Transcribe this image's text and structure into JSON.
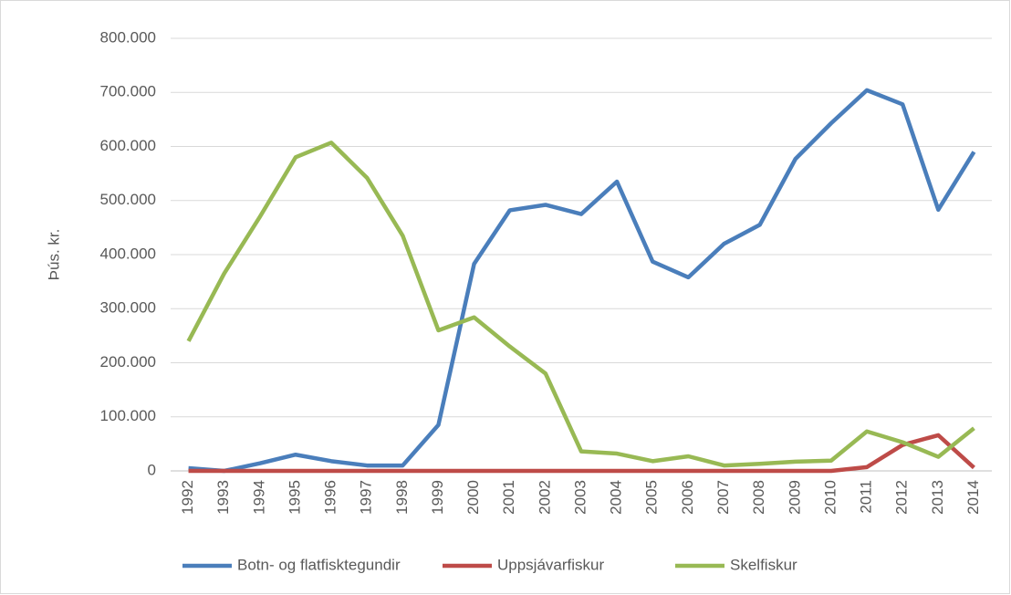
{
  "chart_data": {
    "type": "line",
    "ylabel": "Þús. kr.",
    "categories": [
      "1992",
      "1993",
      "1994",
      "1995",
      "1996",
      "1997",
      "1998",
      "1999",
      "2000",
      "2001",
      "2002",
      "2003",
      "2004",
      "2005",
      "2006",
      "2007",
      "2008",
      "2009",
      "2010",
      "2011",
      "2012",
      "2013",
      "2014"
    ],
    "series": [
      {
        "name": "Botn- og flatfisktegundir",
        "color": "#4a7ebb",
        "values": [
          5000,
          0,
          14000,
          30000,
          18000,
          10000,
          10000,
          85000,
          383000,
          482000,
          492000,
          475000,
          535000,
          387000,
          358000,
          420000,
          455000,
          577000,
          643000,
          704000,
          678000,
          483000,
          590000
        ]
      },
      {
        "name": "Uppsjávarfiskur",
        "color": "#be4b48",
        "values": [
          0,
          0,
          0,
          0,
          0,
          0,
          0,
          0,
          0,
          0,
          0,
          0,
          0,
          0,
          0,
          0,
          0,
          0,
          0,
          7000,
          48000,
          66000,
          6000
        ]
      },
      {
        "name": "Skelfiskur",
        "color": "#98b954",
        "values": [
          240000,
          365000,
          470000,
          580000,
          607000,
          542000,
          435000,
          260000,
          284000,
          230000,
          180000,
          36000,
          32000,
          18000,
          27000,
          10000,
          13000,
          17000,
          19000,
          73000,
          53000,
          26000,
          79000
        ]
      }
    ],
    "ylim": [
      0,
      800000
    ],
    "yticks": [
      0,
      {
        "value": 100000,
        "label": "100.000"
      },
      {
        "value": 200000,
        "label": "200.000"
      },
      {
        "value": 300000,
        "label": "300.000"
      },
      {
        "value": 400000,
        "label": "400.000"
      },
      {
        "value": 500000,
        "label": "500.000"
      },
      {
        "value": 600000,
        "label": "600.000"
      },
      {
        "value": 700000,
        "label": "700.000"
      },
      {
        "value": 800000,
        "label": "800.000"
      }
    ],
    "grid": true
  }
}
